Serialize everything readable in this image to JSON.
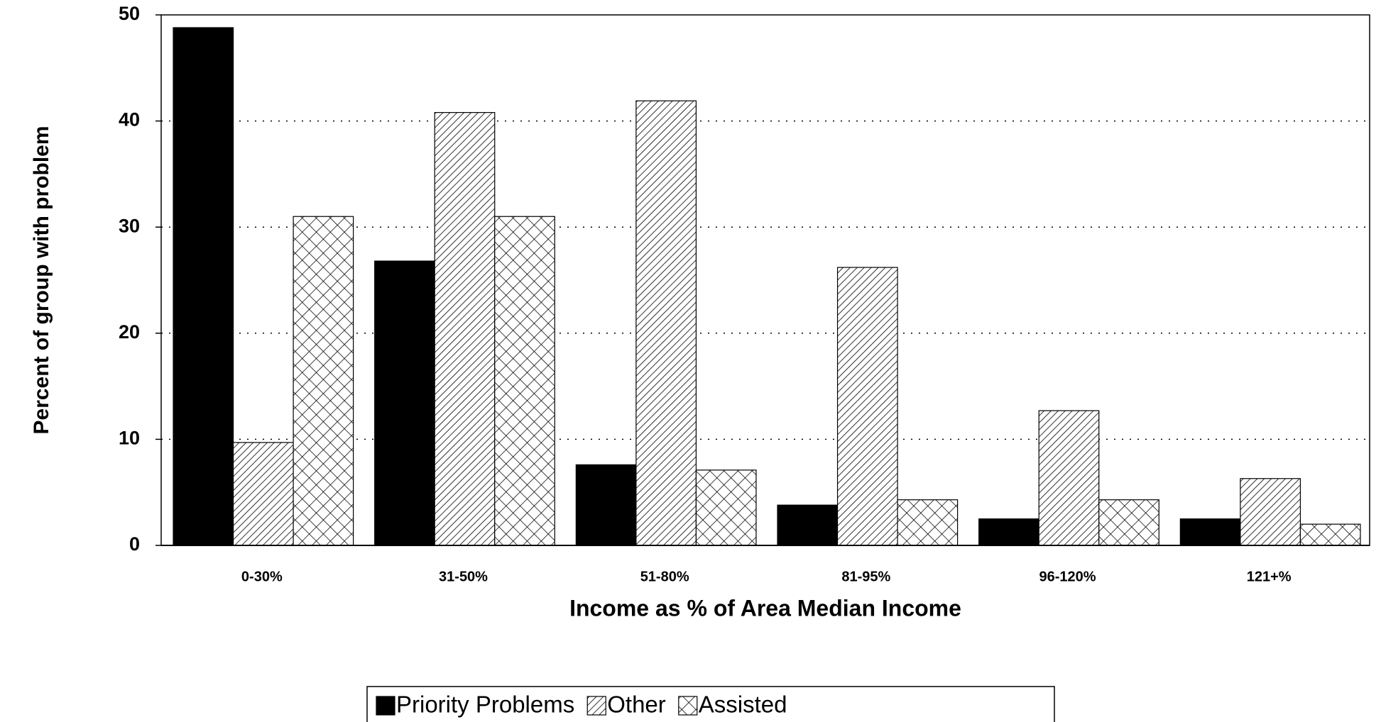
{
  "chart_data": {
    "type": "bar",
    "x_label": "Income as % of Area Median Income",
    "y_label": "Percent of group with problem",
    "categories": [
      "0-30%",
      "31-50%",
      "51-80%",
      "81-95%",
      "96-120%",
      "121+%"
    ],
    "series": [
      {
        "name": "Priority Problems",
        "color": "#000000",
        "pattern": "solid",
        "values": [
          48.8,
          26.8,
          7.6,
          3.8,
          2.5,
          2.5
        ]
      },
      {
        "name": "Other",
        "color": "#000000",
        "pattern": "diagonal",
        "values": [
          9.7,
          40.8,
          41.9,
          26.2,
          12.7,
          6.3
        ]
      },
      {
        "name": "Assisted",
        "color": "#000000",
        "pattern": "crosshatch",
        "values": [
          31,
          31,
          7.1,
          4.3,
          4.3,
          2
        ]
      }
    ],
    "ylim": [
      0,
      50
    ],
    "yticks": [
      0,
      10,
      20,
      30,
      40,
      50
    ],
    "grid": true,
    "legend": "bottom"
  }
}
